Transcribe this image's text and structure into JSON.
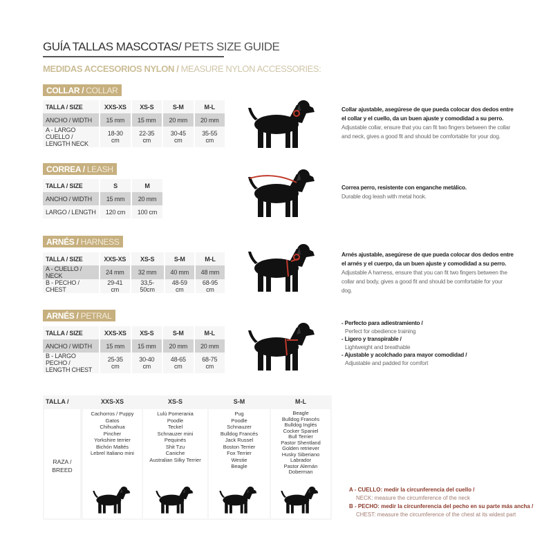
{
  "title": {
    "es": "GUÍA TALLAS MASCOTAS/",
    "en": " PETS SIZE GUIDE"
  },
  "subtitle": {
    "es": "MEDIDAS ACCESORIOS NYLON / ",
    "en": "MEASURE NYLON ACCESSORIES:"
  },
  "colors": {
    "gold": "#c7b07f",
    "accent_red": "#c0392b",
    "note_red": "#8b3a2a"
  },
  "sections": [
    {
      "badge_es": "COLLAR / ",
      "badge_en": "COLLAR",
      "rows": [
        [
          "TALLA / SIZE",
          "XXS-XS",
          "XS-S",
          "S-M",
          "M-L"
        ],
        [
          "ANCHO / WIDTH",
          "15 mm",
          "15 mm",
          "20 mm",
          "20 mm"
        ],
        [
          "A - LARGO CUELLO / LENGTH NECK",
          "18-30 cm",
          "22-35 cm",
          "30-45 cm",
          "35-55 cm"
        ]
      ],
      "desc_es": "Collar ajustable, asegúrese de que pueda colocar dos dedos entre el collar y el cuello, da un buen ajuste y comodidad a su perro.",
      "desc_en": "Adjustable collar, ensure that you can fit two fingers between the collar and neck, gives a good fit and should be comfortable for your dog."
    },
    {
      "badge_es": "CORREA / ",
      "badge_en": "LEASH",
      "rows": [
        [
          "TALLA / SIZE",
          "S",
          "M"
        ],
        [
          "ANCHO / WIDTH",
          "15 mm",
          "20 mm"
        ],
        [
          "LARGO / LENGTH",
          "120 cm",
          "100 cm"
        ]
      ],
      "desc_es": "Correa perro, resistente con enganche metálico.",
      "desc_en": "Durable dog leash with metal hook."
    },
    {
      "badge_es": "ARNÉS / ",
      "badge_en": "HARNESS",
      "rows": [
        [
          "TALLA / SIZE",
          "XXS-XS",
          "XS-S",
          "S-M",
          "M-L"
        ],
        [
          "A - CUELLO / NECK",
          "24 mm",
          "32 mm",
          "40 mm",
          "48 mm"
        ],
        [
          "B - PECHO / CHEST",
          "29-41 cm",
          "33,5-50cm",
          "48-59 cm",
          "68-95 cm"
        ]
      ],
      "desc_es": "Arnés ajustable, asegúrese de que pueda colocar dos dedos entre el arnés y el cuerpo, da un buen ajuste y comodidad a su perro.",
      "desc_en": "Adjustable A harness, ensure that you can fit two fingers between the collar and body, gives a good fit and should be comfortable for your dog."
    },
    {
      "badge_es": "ARNÉS / ",
      "badge_en": "PETRAL",
      "rows": [
        [
          "TALLA / SIZE",
          "XXS-XS",
          "XS-S",
          "S-M",
          "M-L"
        ],
        [
          "ANCHO / WIDTH",
          "15 mm",
          "15 mm",
          "20 mm",
          "20 mm"
        ],
        [
          "B - LARGO PECHO / LENGTH CHEST",
          "25-35 cm",
          "30-40 cm",
          "48-65 cm",
          "68-75 cm"
        ]
      ],
      "bullets": [
        {
          "es": "- Perfecto para adiestramiento /",
          "en": "Perfect for obedience training"
        },
        {
          "es": "- Ligero y transpirable /",
          "en": "Lightweight and breathable"
        },
        {
          "es": "- Ajustable y acolchado para mayor comodidad /",
          "en": "Adjustable and padded for comfort"
        }
      ]
    }
  ],
  "breed_table": {
    "size_label": "TALLA /  SIZE",
    "breed_label": "RAZA / BREED",
    "columns": [
      {
        "size": "XXS-XS",
        "breeds": [
          "Cachorros / Puppy",
          "Gatos",
          "Chihuahua",
          "Pincher",
          "Yorkshire terrier",
          "Bichón Maltés",
          "Lebrel Italiano mini"
        ]
      },
      {
        "size": "XS-S",
        "breeds": [
          "Lulú Pomerania",
          "Poodle",
          "Teckel",
          "Schnauzer mini",
          "Pequinés",
          "Shit Tzu",
          "Caniche",
          "Australian Silky Terrier"
        ]
      },
      {
        "size": "S-M",
        "breeds": [
          "Pug",
          "Poodle",
          "Schnauzer",
          "Bulldog Francés",
          "Jack Russel",
          "Boston Terrier",
          "Fox Terrier",
          "Westie",
          "Beagle"
        ]
      },
      {
        "size": "M-L",
        "breeds": [
          "Beagle",
          "Bulldog Francés",
          "Bulldog Inglés",
          "Cocker Spaniel",
          "Bull Terrier",
          "Pastor Shentland",
          "Golden retriever",
          "Husky Siberiano",
          "Labrador",
          "Pastor Alemán",
          "Doberman"
        ]
      }
    ]
  },
  "notes": [
    {
      "es": "A - CUELLO: medir la circunferencia del cuello /",
      "en": "NECK: measure the circumference of the neck"
    },
    {
      "es": "B - PECHO: medir la circunferencia del pecho en su parte más ancha /",
      "en": "CHEST: measure the circumference of the chest at its widest part"
    }
  ]
}
